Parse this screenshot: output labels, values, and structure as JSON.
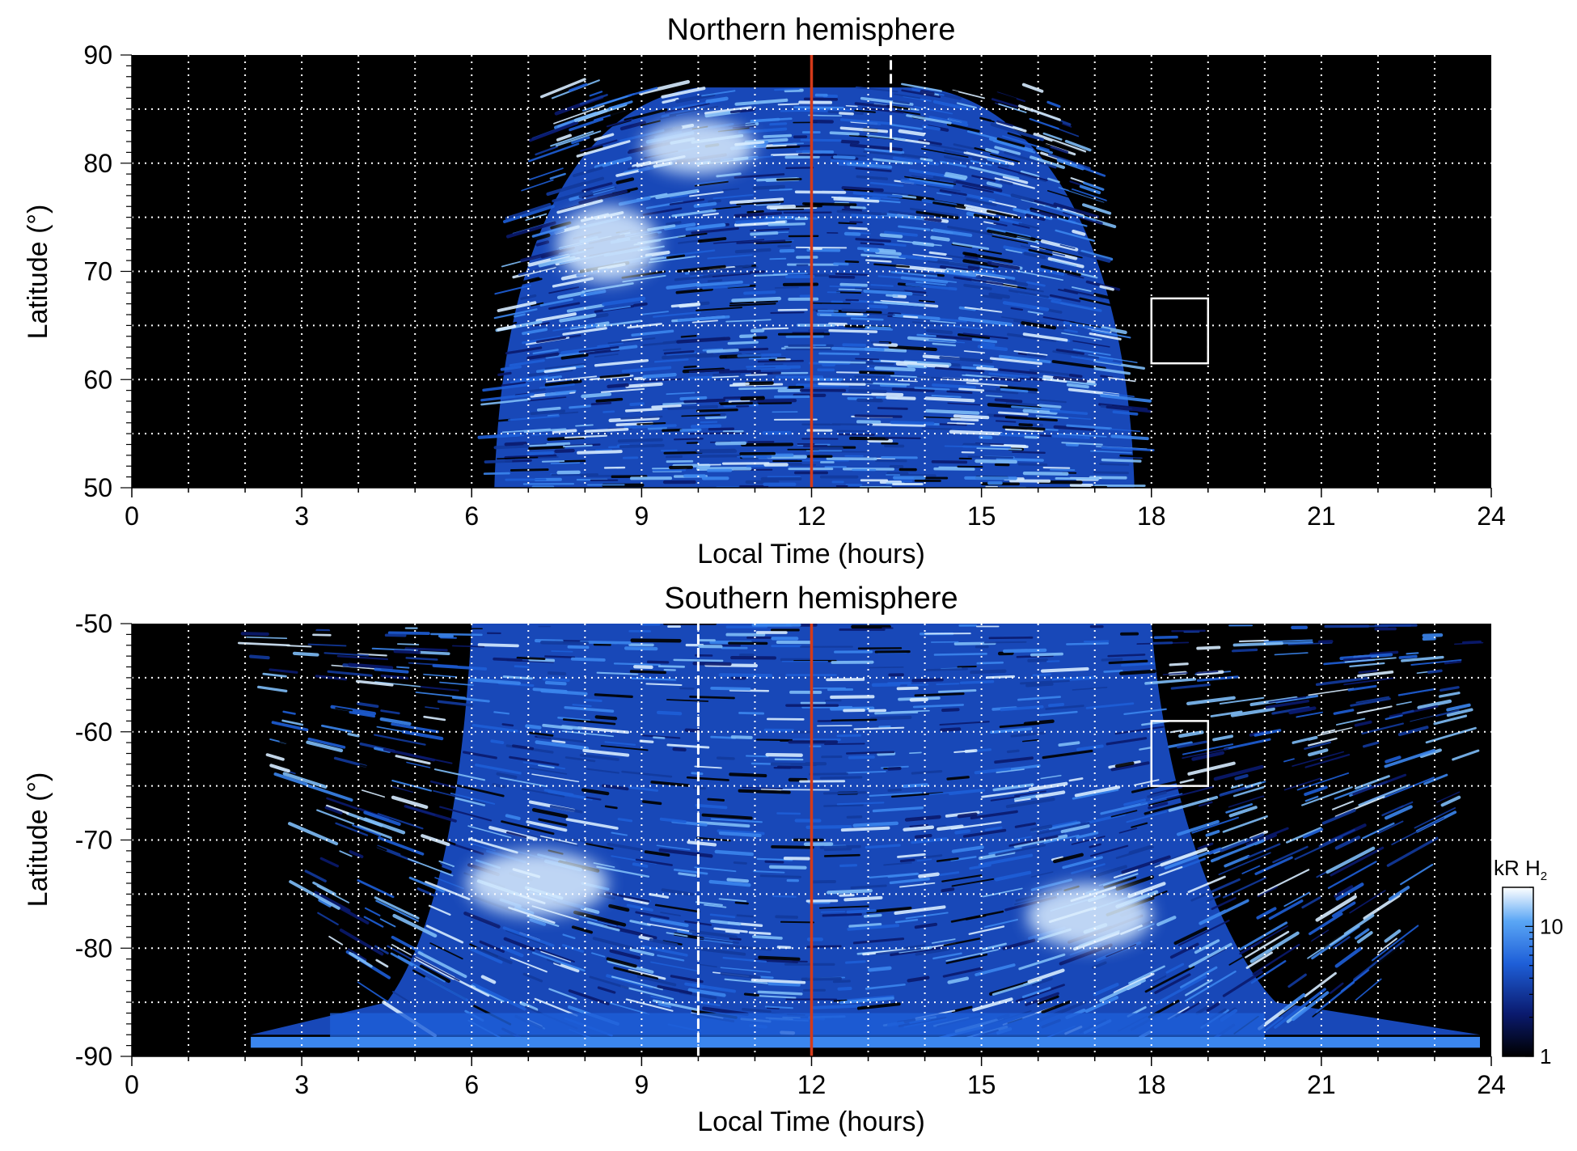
{
  "figure": {
    "colorbar": {
      "unit_label": "kR H",
      "unit_subscript": "2",
      "scale": "log",
      "range": [
        1,
        20
      ],
      "tick_labels": [
        "1",
        "10"
      ],
      "colors": [
        "#000000",
        "#0a1a6e",
        "#1e5fd8",
        "#5aa6f5",
        "#ffffff"
      ]
    }
  },
  "chart_data": [
    {
      "type": "heatmap",
      "title": "Northern hemisphere",
      "xlabel": "Local Time (hours)",
      "ylabel": "Latitude (°)",
      "xlim": [
        0,
        24
      ],
      "ylim": [
        50,
        90
      ],
      "x_ticks": [
        0,
        3,
        6,
        9,
        12,
        15,
        18,
        21,
        24
      ],
      "y_ticks": [
        50,
        60,
        70,
        80,
        90
      ],
      "grid": true,
      "grid_x_step_hours": 1,
      "grid_y_step_deg": 5,
      "emission_coverage": {
        "local_time_range": [
          6.4,
          17.7
        ],
        "top_latitude": 87
      },
      "bright_regions": [
        {
          "local_time": [
            7.5,
            9.3
          ],
          "latitude": [
            69,
            76
          ],
          "level": "high"
        },
        {
          "local_time": [
            9.0,
            11.0
          ],
          "latitude": [
            79,
            84
          ],
          "level": "high"
        }
      ],
      "reference_lines": [
        {
          "local_time": 12,
          "style": "solid",
          "color": "#d43a1a"
        },
        {
          "local_time": 13.4,
          "style": "dashed",
          "color": "#ffffff",
          "latitude_range": [
            81,
            90
          ]
        }
      ],
      "box": {
        "local_time": [
          18,
          19
        ],
        "latitude": [
          61.5,
          67.5
        ],
        "color": "#ffffff"
      }
    },
    {
      "type": "heatmap",
      "title": "Southern hemisphere",
      "xlabel": "Local Time (hours)",
      "ylabel": "Latitude (°)",
      "xlim": [
        0,
        24
      ],
      "ylim": [
        -90,
        -50
      ],
      "x_ticks": [
        0,
        3,
        6,
        9,
        12,
        15,
        18,
        21,
        24
      ],
      "y_ticks": [
        -50,
        -60,
        -70,
        -80,
        -90
      ],
      "grid": true,
      "grid_x_step_hours": 1,
      "grid_y_step_deg": 5,
      "emission_coverage": {
        "local_time_range": [
          2.1,
          23.8
        ],
        "bottom_latitude": -88
      },
      "bright_regions": [
        {
          "local_time": [
            5.9,
            8.4
          ],
          "latitude": [
            -77,
            -71
          ],
          "level": "high"
        },
        {
          "local_time": [
            15.8,
            18.0
          ],
          "latitude": [
            -80,
            -74
          ],
          "level": "high"
        }
      ],
      "reference_lines": [
        {
          "local_time": 12,
          "style": "solid",
          "color": "#d43a1a"
        },
        {
          "local_time": 10,
          "style": "dashed",
          "color": "#ffffff",
          "latitude_range": [
            -90,
            -50
          ]
        }
      ],
      "box": {
        "local_time": [
          18,
          19
        ],
        "latitude": [
          -65,
          -59
        ],
        "color": "#ffffff"
      }
    }
  ]
}
